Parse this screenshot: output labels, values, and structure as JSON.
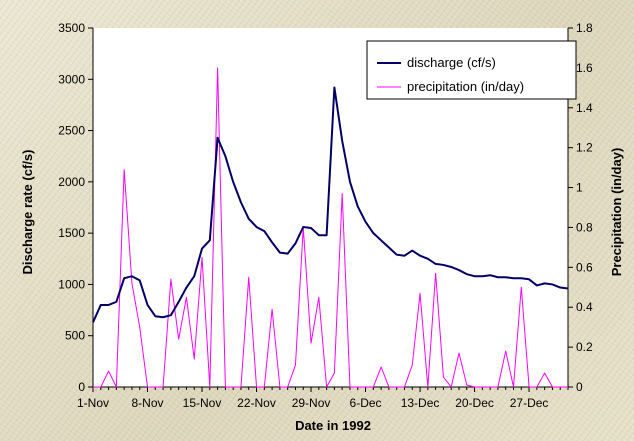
{
  "chart_data": {
    "type": "line",
    "xlabel": "Date in 1992",
    "ylabel_left": "Discharge rate (cf/s)",
    "ylabel_right": "Precipitation (in/day)",
    "x_tick_labels": [
      "1-Nov",
      "8-Nov",
      "15-Nov",
      "22-Nov",
      "29-Nov",
      "6-Dec",
      "13-Dec",
      "20-Dec",
      "27-Dec"
    ],
    "x_range_days": [
      0,
      61
    ],
    "y_left_range": [
      0,
      3500
    ],
    "y_left_ticks": [
      0,
      500,
      1000,
      1500,
      2000,
      2500,
      3000,
      3500
    ],
    "y_right_range": [
      0,
      1.8
    ],
    "y_right_ticks": [
      0,
      0.2,
      0.4,
      0.6,
      0.8,
      1,
      1.2,
      1.4,
      1.6,
      1.8
    ],
    "grid": false,
    "legend_position": "top-right",
    "series": [
      {
        "name": "discharge (cf/s)",
        "axis": "left",
        "color": "#000066",
        "x": [
          0,
          1,
          2,
          3,
          4,
          5,
          6,
          7,
          8,
          9,
          10,
          11,
          12,
          13,
          14,
          15,
          16,
          17,
          18,
          19,
          20,
          21,
          22,
          23,
          24,
          25,
          26,
          27,
          28,
          29,
          30,
          31,
          32,
          33,
          34,
          35,
          36,
          37,
          38,
          39,
          40,
          41,
          42,
          43,
          44,
          45,
          46,
          47,
          48,
          49,
          50,
          51,
          52,
          53,
          54,
          55,
          56,
          57,
          58,
          59,
          60,
          61
        ],
        "values": [
          630,
          800,
          800,
          830,
          1060,
          1080,
          1040,
          800,
          690,
          680,
          700,
          830,
          970,
          1080,
          1350,
          1430,
          2430,
          2250,
          2000,
          1800,
          1640,
          1560,
          1520,
          1410,
          1310,
          1300,
          1400,
          1560,
          1550,
          1480,
          1480,
          2920,
          2400,
          2000,
          1760,
          1610,
          1500,
          1430,
          1360,
          1290,
          1280,
          1330,
          1280,
          1250,
          1200,
          1190,
          1170,
          1140,
          1100,
          1080,
          1080,
          1090,
          1070,
          1070,
          1060,
          1060,
          1050,
          990,
          1010,
          1000,
          970,
          960
        ]
      },
      {
        "name": "precipitation (in/day)",
        "axis": "right",
        "color": "#ff00ff",
        "x": [
          0,
          1,
          2,
          3,
          4,
          5,
          6,
          7,
          8,
          9,
          10,
          11,
          12,
          13,
          14,
          15,
          16,
          17,
          18,
          19,
          20,
          21,
          22,
          23,
          24,
          25,
          26,
          27,
          28,
          29,
          30,
          31,
          32,
          33,
          34,
          35,
          36,
          37,
          38,
          39,
          40,
          41,
          42,
          43,
          44,
          45,
          46,
          47,
          48,
          49,
          50,
          51,
          52,
          53,
          54,
          55,
          56,
          57,
          58,
          59,
          60,
          61
        ],
        "values": [
          0,
          0,
          0.08,
          0,
          1.09,
          0.52,
          0.3,
          0,
          0,
          0,
          0.54,
          0.24,
          0.45,
          0.14,
          0.65,
          0,
          1.6,
          0,
          0,
          0,
          0.55,
          0,
          0,
          0.39,
          0,
          0,
          0.11,
          0.8,
          0.22,
          0.45,
          0,
          0.07,
          0.97,
          0,
          0,
          0,
          0,
          0.1,
          0,
          0,
          0,
          0.11,
          0.47,
          0,
          0.57,
          0.05,
          0,
          0.17,
          0.01,
          0,
          0,
          0,
          0,
          0.18,
          0,
          0.5,
          0,
          0,
          0.07,
          0,
          0,
          0
        ]
      }
    ]
  }
}
